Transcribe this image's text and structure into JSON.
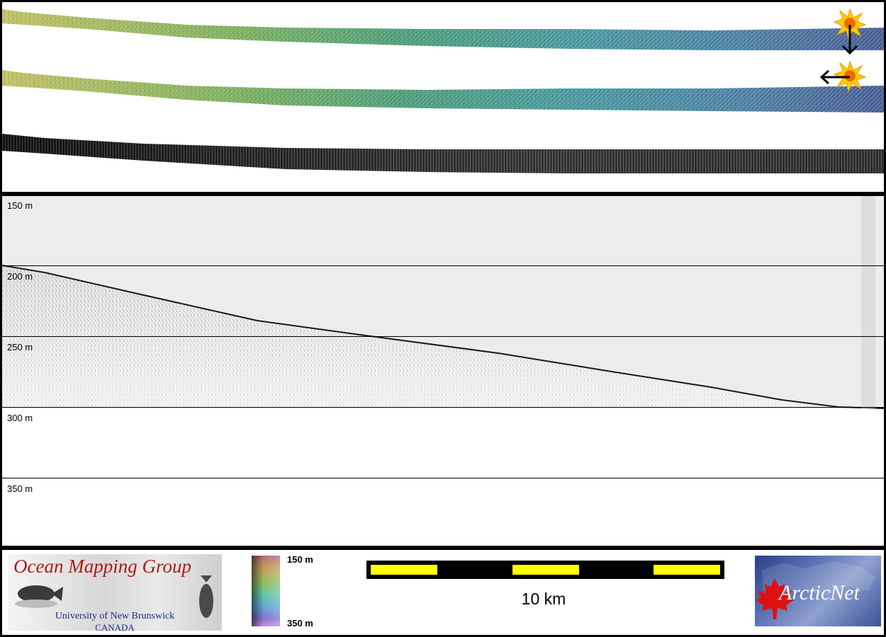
{
  "profile": {
    "depth_labels": [
      "150 m",
      "200 m",
      "250 m",
      "300 m",
      "350 m"
    ]
  },
  "legend": {
    "top_label": "150 m",
    "bottom_label": "350 m"
  },
  "scale_bar": {
    "label": "10 km",
    "bar_color": "#ffff00"
  },
  "logos": {
    "ocean_mapping": {
      "title": "Ocean Mapping Group",
      "university": "University of New Brunswick",
      "country": "CANADA",
      "title_color": "#b01818",
      "text_color": "#1c2a8a"
    },
    "arcticnet": {
      "text": "ArcticNet",
      "leaf_color": "#e01010"
    }
  },
  "icons": [
    "sun-icon",
    "arrow-down-icon",
    "arrow-left-icon",
    "maple-leaf-icon",
    "fish-icon"
  ]
}
